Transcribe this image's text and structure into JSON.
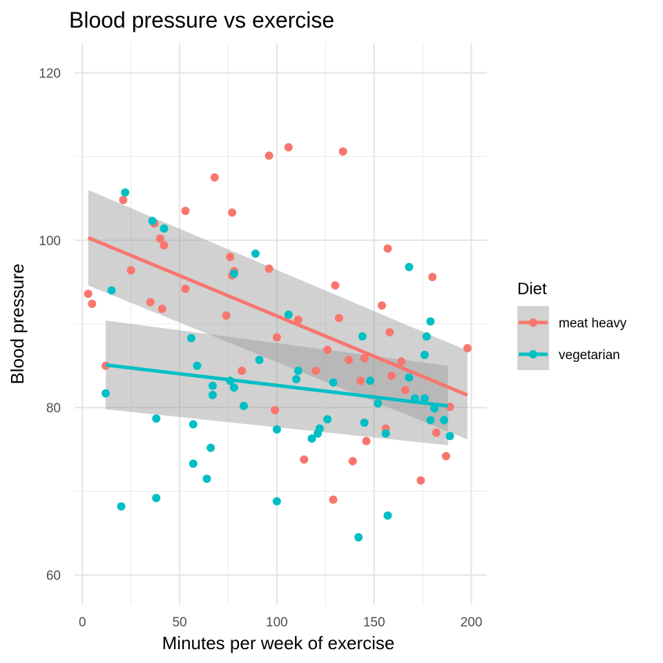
{
  "chart_data": {
    "type": "scatter",
    "title": "Blood pressure vs exercise",
    "xlabel": "Minutes per week of exercise",
    "ylabel": "Blood pressure",
    "xlim": [
      -4,
      208
    ],
    "ylim": [
      56.5,
      123.5
    ],
    "x_ticks": [
      0,
      50,
      100,
      150,
      200
    ],
    "y_ticks": [
      60,
      80,
      100,
      120
    ],
    "x_tick_labels": [
      "0",
      "50",
      "100",
      "150",
      "200"
    ],
    "y_tick_labels": [
      "60",
      "80",
      "100",
      "120"
    ],
    "grid": true,
    "legend": {
      "title": "Diet",
      "position": "right"
    },
    "series": [
      {
        "name": "meat heavy",
        "color": "#F8766D",
        "points": [
          [
            3,
            93.6
          ],
          [
            5,
            92.4
          ],
          [
            12,
            85
          ],
          [
            21,
            104.8
          ],
          [
            25,
            96.4
          ],
          [
            35,
            92.6
          ],
          [
            37,
            102
          ],
          [
            40,
            100.2
          ],
          [
            41,
            91.8
          ],
          [
            42,
            99.4
          ],
          [
            53,
            103.5
          ],
          [
            53,
            94.2
          ],
          [
            68,
            107.5
          ],
          [
            74,
            91
          ],
          [
            76,
            98
          ],
          [
            77,
            95.8
          ],
          [
            77,
            103.3
          ],
          [
            78,
            96.3
          ],
          [
            82,
            84.4
          ],
          [
            96,
            96.6
          ],
          [
            96,
            110.1
          ],
          [
            99,
            79.7
          ],
          [
            100,
            88.4
          ],
          [
            106,
            111.1
          ],
          [
            111,
            90.5
          ],
          [
            114,
            73.8
          ],
          [
            120,
            84.4
          ],
          [
            126,
            86.9
          ],
          [
            129,
            69
          ],
          [
            130,
            94.6
          ],
          [
            132,
            90.7
          ],
          [
            134,
            110.6
          ],
          [
            137,
            85.7
          ],
          [
            139,
            73.6
          ],
          [
            143,
            83.2
          ],
          [
            145,
            85.9
          ],
          [
            146,
            76
          ],
          [
            154,
            92.2
          ],
          [
            156,
            77.5
          ],
          [
            157,
            99
          ],
          [
            158,
            89
          ],
          [
            159,
            83.8
          ],
          [
            164,
            85.5
          ],
          [
            166,
            82.1
          ],
          [
            174,
            71.3
          ],
          [
            180,
            95.6
          ],
          [
            182,
            77
          ],
          [
            187,
            74.2
          ],
          [
            189,
            80.1
          ],
          [
            198,
            87.1
          ]
        ],
        "fit": {
          "x": [
            3,
            198
          ],
          "y": [
            100.3,
            81.5
          ],
          "ci_lower": [
            94.6,
            76.2
          ],
          "ci_upper": [
            106,
            86.8
          ]
        }
      },
      {
        "name": "vegetarian",
        "color": "#00BFC4",
        "points": [
          [
            12,
            81.7
          ],
          [
            15,
            94
          ],
          [
            20,
            68.2
          ],
          [
            22,
            105.7
          ],
          [
            36,
            102.3
          ],
          [
            38,
            78.7
          ],
          [
            38,
            69.2
          ],
          [
            42,
            101.4
          ],
          [
            56,
            88.3
          ],
          [
            57,
            73.3
          ],
          [
            57,
            78
          ],
          [
            59,
            85
          ],
          [
            64,
            71.5
          ],
          [
            66,
            75.2
          ],
          [
            67,
            81.5
          ],
          [
            67,
            82.6
          ],
          [
            76,
            83.2
          ],
          [
            78,
            82.4
          ],
          [
            78,
            96
          ],
          [
            83,
            80.2
          ],
          [
            89,
            98.4
          ],
          [
            91,
            85.7
          ],
          [
            100,
            68.8
          ],
          [
            100,
            77.4
          ],
          [
            106,
            91.1
          ],
          [
            110,
            83.4
          ],
          [
            111,
            84.4
          ],
          [
            118,
            76.3
          ],
          [
            121,
            76.9
          ],
          [
            122,
            77.5
          ],
          [
            126,
            78.6
          ],
          [
            129,
            83
          ],
          [
            142,
            64.5
          ],
          [
            144,
            88.5
          ],
          [
            145,
            78.2
          ],
          [
            148,
            83.2
          ],
          [
            152,
            80.5
          ],
          [
            156,
            76.9
          ],
          [
            157,
            67.1
          ],
          [
            168,
            96.8
          ],
          [
            168,
            83.6
          ],
          [
            171,
            81.1
          ],
          [
            176,
            86.3
          ],
          [
            176,
            81.1
          ],
          [
            177,
            88.5
          ],
          [
            179,
            90.3
          ],
          [
            179,
            78.5
          ],
          [
            181,
            79.9
          ],
          [
            186,
            78.5
          ],
          [
            189,
            76.6
          ]
        ],
        "fit": {
          "x": [
            12,
            188
          ],
          "y": [
            85.1,
            80.2
          ],
          "ci_lower": [
            79.8,
            75.5
          ],
          "ci_upper": [
            90.4,
            85
          ]
        }
      }
    ]
  }
}
